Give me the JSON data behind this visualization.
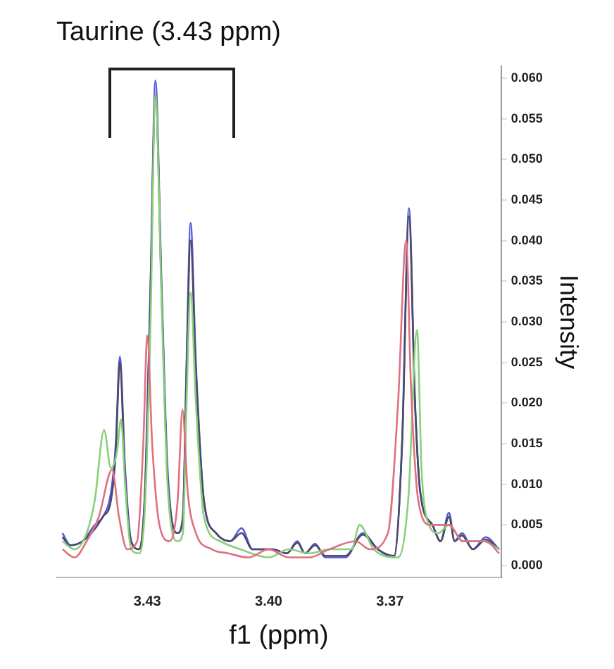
{
  "chart_data": {
    "type": "line",
    "title": "Taurine (3.43 ppm)",
    "xlabel": "f1 (ppm)",
    "ylabel": "Intensity",
    "xlim": [
      3.4525,
      3.3425
    ],
    "xticks": [
      3.43,
      {
        "value": 3.4,
        "label": "3.40"
      },
      3.37
    ],
    "ylim": [
      -0.0015,
      0.0615
    ],
    "yticks": [
      {
        "value": 0,
        "label": "0.000"
      },
      {
        "value": 0.005,
        "label": "0.005"
      },
      {
        "value": 0.01,
        "label": "0.010"
      },
      {
        "value": 0.015,
        "label": "0.015"
      },
      {
        "value": 0.02,
        "label": "0.020"
      },
      {
        "value": 0.025,
        "label": "0.025"
      },
      {
        "value": 0.03,
        "label": "0.030"
      },
      {
        "value": 0.035,
        "label": "0.035"
      },
      {
        "value": 0.04,
        "label": "0.040"
      },
      {
        "value": 0.045,
        "label": "0.045"
      },
      {
        "value": 0.05,
        "label": "0.050"
      },
      {
        "value": 0.055,
        "label": "0.055"
      },
      {
        "value": 0.06,
        "label": "0.060"
      }
    ],
    "grid": false,
    "legend": false,
    "marker": "none",
    "line_style": "solid",
    "series": [
      {
        "color": "#e07080",
        "x": [
          3.451,
          3.448,
          3.445,
          3.442,
          3.4387,
          3.437,
          3.435,
          3.4325,
          3.431,
          3.43,
          3.4288,
          3.427,
          3.4245,
          3.4225,
          3.4213,
          3.42,
          3.418,
          3.414,
          3.41,
          3.405,
          3.4,
          3.395,
          3.39,
          3.385,
          3.3785,
          3.375,
          3.3705,
          3.368,
          3.366,
          3.3648,
          3.363,
          3.36,
          3.3554,
          3.352,
          3.3463,
          3.343
        ],
        "values": [
          0.002,
          0.001,
          0.003,
          0.006,
          0.0118,
          0.006,
          0.002,
          0.003,
          0.015,
          0.0283,
          0.015,
          0.005,
          0.003,
          0.008,
          0.0192,
          0.009,
          0.004,
          0.002,
          0.0015,
          0.001,
          0.002,
          0.001,
          0.001,
          0.002,
          0.003,
          0.002,
          0.004,
          0.02,
          0.04,
          0.022,
          0.008,
          0.005,
          0.005,
          0.003,
          0.003,
          0.0015
        ]
      },
      {
        "color": "#8ad07a",
        "x": [
          3.451,
          3.448,
          3.445,
          3.443,
          3.4407,
          3.439,
          3.4375,
          3.4365,
          3.4355,
          3.434,
          3.432,
          3.4305,
          3.4292,
          3.428,
          3.4265,
          3.425,
          3.4225,
          3.4212,
          3.4203,
          3.4193,
          3.418,
          3.416,
          3.412,
          3.407,
          3.4,
          3.395,
          3.39,
          3.385,
          3.3795,
          3.3775,
          3.374,
          3.368,
          3.3655,
          3.3633,
          3.3622,
          3.361,
          3.358,
          3.3554,
          3.352,
          3.347,
          3.343
        ],
        "values": [
          0.003,
          0.002,
          0.004,
          0.008,
          0.0167,
          0.012,
          0.014,
          0.018,
          0.01,
          0.002,
          0.0015,
          0.008,
          0.03,
          0.058,
          0.033,
          0.01,
          0.003,
          0.004,
          0.02,
          0.0336,
          0.02,
          0.006,
          0.003,
          0.002,
          0.001,
          0.002,
          0.0015,
          0.002,
          0.002,
          0.005,
          0.002,
          0.001,
          0.008,
          0.029,
          0.012,
          0.006,
          0.004,
          0.005,
          0.003,
          0.003,
          0.002
        ]
      },
      {
        "color": "#4a4a6a",
        "x": [
          3.451,
          3.449,
          3.446,
          3.443,
          3.441,
          3.439,
          3.4378,
          3.4368,
          3.4355,
          3.434,
          3.432,
          3.4305,
          3.4292,
          3.428,
          3.4265,
          3.425,
          3.4225,
          3.4212,
          3.4203,
          3.4193,
          3.418,
          3.416,
          3.413,
          3.4095,
          3.4067,
          3.404,
          3.399,
          3.3955,
          3.3929,
          3.391,
          3.3885,
          3.386,
          3.381,
          3.3767,
          3.373,
          3.369,
          3.367,
          3.3653,
          3.3638,
          3.3625,
          3.3595,
          3.3575,
          3.3554,
          3.354,
          3.3522,
          3.3495,
          3.3463,
          3.343
        ],
        "values": [
          0.0035,
          0.0025,
          0.003,
          0.0045,
          0.006,
          0.008,
          0.014,
          0.025,
          0.011,
          0.003,
          0.002,
          0.01,
          0.034,
          0.058,
          0.034,
          0.011,
          0.004,
          0.006,
          0.024,
          0.04,
          0.024,
          0.008,
          0.004,
          0.003,
          0.004,
          0.002,
          0.002,
          0.0015,
          0.0028,
          0.0015,
          0.0025,
          0.0012,
          0.0012,
          0.0038,
          0.002,
          0.0012,
          0.015,
          0.043,
          0.02,
          0.009,
          0.005,
          0.003,
          0.006,
          0.003,
          0.0037,
          0.002,
          0.0032,
          0.002
        ]
      },
      {
        "color": "#5a5ad8",
        "x": [
          3.451,
          3.449,
          3.446,
          3.443,
          3.441,
          3.439,
          3.4378,
          3.4368,
          3.4355,
          3.434,
          3.432,
          3.4305,
          3.4292,
          3.428,
          3.4265,
          3.425,
          3.4225,
          3.4212,
          3.4203,
          3.4193,
          3.418,
          3.416,
          3.413,
          3.4095,
          3.4067,
          3.404,
          3.399,
          3.3955,
          3.3929,
          3.391,
          3.3885,
          3.386,
          3.381,
          3.3767,
          3.373,
          3.369,
          3.367,
          3.3653,
          3.3638,
          3.3625,
          3.3595,
          3.3575,
          3.3554,
          3.354,
          3.3522,
          3.3495,
          3.3463,
          3.343
        ],
        "values": [
          0.004,
          0.0025,
          0.003,
          0.005,
          0.006,
          0.009,
          0.015,
          0.0257,
          0.012,
          0.003,
          0.002,
          0.01,
          0.035,
          0.0597,
          0.035,
          0.012,
          0.004,
          0.006,
          0.025,
          0.0422,
          0.025,
          0.008,
          0.004,
          0.003,
          0.0046,
          0.002,
          0.002,
          0.0015,
          0.003,
          0.0015,
          0.0027,
          0.001,
          0.001,
          0.004,
          0.002,
          0.001,
          0.015,
          0.044,
          0.02,
          0.009,
          0.005,
          0.003,
          0.0065,
          0.003,
          0.004,
          0.002,
          0.0035,
          0.002
        ]
      }
    ]
  }
}
